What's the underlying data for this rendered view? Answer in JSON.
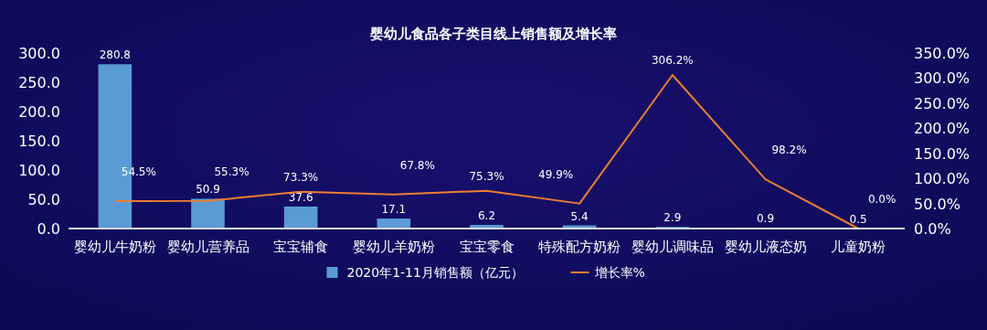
{
  "chart_data": {
    "type": "bar",
    "title": "婴幼儿食品各子类目线上销售额及增长率",
    "categories": [
      "婴幼儿牛奶粉",
      "婴幼儿营养品",
      "宝宝辅食",
      "婴幼儿羊奶粉",
      "宝宝零食",
      "特殊配方奶粉",
      "婴幼儿调味品",
      "婴幼儿液态奶",
      "儿童奶粉"
    ],
    "series": [
      {
        "name": "2020年1-11月销售额（亿元）",
        "color": "#5b9bd5",
        "values": [
          280.8,
          50.9,
          37.6,
          17.1,
          6.2,
          5.4,
          2.9,
          0.9,
          0.5
        ],
        "value_labels": [
          "280.8",
          "50.9",
          "37.6",
          "17.1",
          "6.2",
          "5.4",
          "2.9",
          "0.9",
          "0.5"
        ]
      },
      {
        "name": "增长率%",
        "type": "line",
        "axis": "y2",
        "color": "#ed7d31",
        "values": [
          54.5,
          55.3,
          73.3,
          67.8,
          75.3,
          49.9,
          306.2,
          98.2,
          0.0
        ],
        "value_labels": [
          "54.5%",
          "55.3%",
          "73.3%",
          "67.8%",
          "75.3%",
          "49.9%",
          "306.2%",
          "98.2%",
          "0.0%"
        ]
      }
    ],
    "ylim": [
      0,
      300
    ],
    "yticks": [
      {
        "value": 0,
        "label": "0.0"
      },
      {
        "value": 50,
        "label": "50.0"
      },
      {
        "value": 100,
        "label": "100.0"
      },
      {
        "value": 150,
        "label": "150.0"
      },
      {
        "value": 200,
        "label": "200.0"
      },
      {
        "value": 250,
        "label": "250.0"
      },
      {
        "value": 300,
        "label": "300.0"
      }
    ],
    "y2lim": [
      0,
      350
    ],
    "y2ticks": [
      {
        "value": 0,
        "label": "0.0%"
      },
      {
        "value": 50,
        "label": "50.0%"
      },
      {
        "value": 100,
        "label": "100.0%"
      },
      {
        "value": 150,
        "label": "150.0%"
      },
      {
        "value": 200,
        "label": "200.0%"
      },
      {
        "value": 250,
        "label": "250.0%"
      },
      {
        "value": 300,
        "label": "300.0%"
      },
      {
        "value": 350,
        "label": "350.0%"
      }
    ],
    "grid": false,
    "legend": "bottom",
    "marker": "none",
    "line_style": "solid"
  }
}
